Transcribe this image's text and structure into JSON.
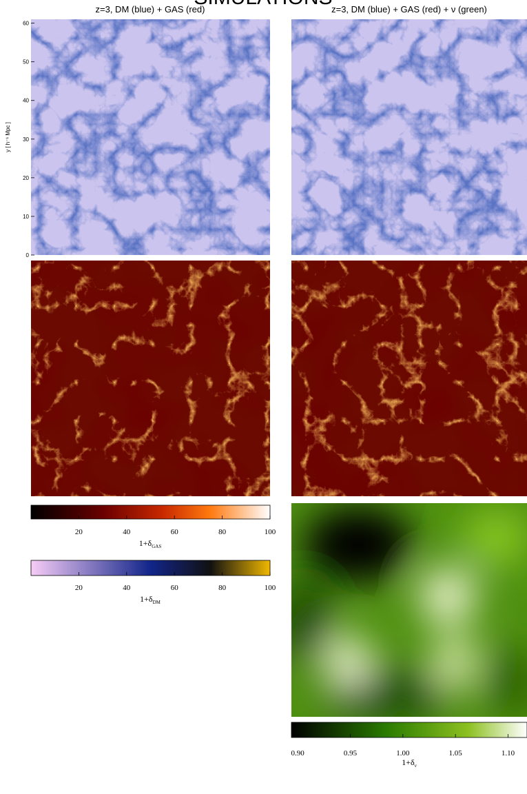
{
  "header": {
    "title": "SIMULATIONS"
  },
  "panels": {
    "left_title": "z=3, DM (blue) + GAS (red)",
    "right_title": "z=3, DM (blue) + GAS (red) + ν (green)"
  },
  "y_axis": {
    "label": "y [ h⁻¹ Mpc ]",
    "range": [
      0,
      61
    ],
    "ticks": [
      0,
      10,
      20,
      30,
      40,
      50,
      60
    ]
  },
  "colorbars": [
    {
      "label": "1+δ",
      "subscript": "GAS",
      "range": [
        0,
        100
      ],
      "ticks": [
        20,
        40,
        60,
        80,
        100
      ]
    },
    {
      "label": "1+δ",
      "subscript": "DM",
      "range": [
        0,
        100
      ],
      "ticks": [
        20,
        40,
        60,
        80,
        100
      ]
    },
    {
      "label": "1+δ",
      "subscript": "ν",
      "range": [
        0.894,
        1.118
      ],
      "ticks": [
        {
          "value": 0.9,
          "label": "0.90"
        },
        {
          "value": 0.95,
          "label": "0.95"
        },
        {
          "value": 1.0,
          "label": "1.00"
        },
        {
          "value": 1.05,
          "label": "1.05"
        },
        {
          "value": 1.1,
          "label": "1.10"
        }
      ]
    }
  ]
}
